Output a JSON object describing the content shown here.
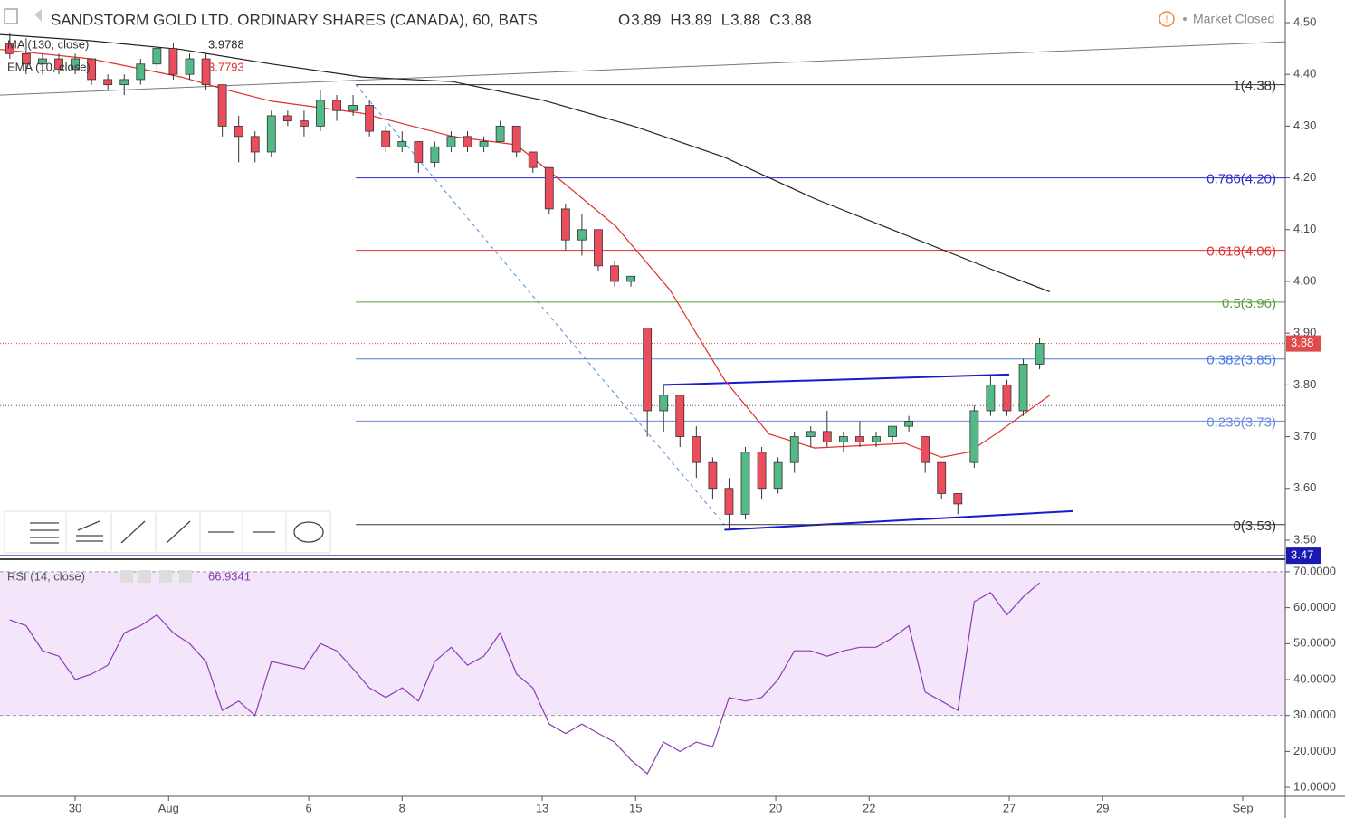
{
  "chart_data": [
    {
      "type": "candlestick",
      "title": "SANDSTORM GOLD LTD. ORDINARY SHARES (CANADA), 60, BATS",
      "status": "Market Closed",
      "ohlc": [
        {
          "label": "O",
          "value": 3.89
        },
        {
          "label": "H",
          "value": 3.89
        },
        {
          "label": "L",
          "value": 3.88
        },
        {
          "label": "C",
          "value": 3.88
        }
      ],
      "x": [
        -1.4,
        -1.05,
        -0.7,
        -0.35,
        0,
        0.35,
        0.7,
        1.05,
        1.4,
        1.75,
        2.1,
        2.45,
        2.8,
        3.15,
        3.5,
        3.85,
        4.2,
        4.55,
        4.9,
        5.25,
        5.6,
        5.95,
        6.3,
        6.65,
        7,
        7.35,
        7.7,
        8.05,
        8.4,
        8.75,
        9.1,
        9.45,
        9.8,
        10.15,
        10.5,
        10.85,
        11.2,
        11.55,
        11.9,
        12.25,
        12.6,
        12.95,
        13.3,
        13.65,
        14,
        14.35,
        14.7,
        15.05,
        15.4,
        15.75,
        16.1,
        16.45,
        16.8,
        17.15,
        17.5,
        17.85,
        18.2,
        18.55,
        18.9,
        19.25,
        19.6,
        19.95,
        20.3,
        20.65
      ],
      "open": [
        4.46,
        4.44,
        4.42,
        4.43,
        4.41,
        4.43,
        4.39,
        4.38,
        4.39,
        4.42,
        4.45,
        4.4,
        4.43,
        4.38,
        4.3,
        4.28,
        4.25,
        4.32,
        4.31,
        4.3,
        4.35,
        4.33,
        4.34,
        4.29,
        4.26,
        4.27,
        4.23,
        4.26,
        4.28,
        4.26,
        4.27,
        4.3,
        4.25,
        4.22,
        4.14,
        4.08,
        4.1,
        4.03,
        4.0,
        3.91,
        3.75,
        3.78,
        3.7,
        3.65,
        3.6,
        3.55,
        3.67,
        3.6,
        3.65,
        3.7,
        3.71,
        3.69,
        3.7,
        3.69,
        3.7,
        3.72,
        3.7,
        3.65,
        3.59,
        3.65,
        3.75,
        3.8,
        3.75,
        3.84
      ],
      "high": [
        4.48,
        4.47,
        4.44,
        4.44,
        4.44,
        4.43,
        4.4,
        4.4,
        4.43,
        4.46,
        4.46,
        4.44,
        4.44,
        4.38,
        4.32,
        4.29,
        4.33,
        4.33,
        4.33,
        4.37,
        4.36,
        4.36,
        4.35,
        4.3,
        4.29,
        4.27,
        4.27,
        4.29,
        4.29,
        4.28,
        4.31,
        4.3,
        4.25,
        4.22,
        4.15,
        4.13,
        4.1,
        4.04,
        4.01,
        3.91,
        3.8,
        3.78,
        3.72,
        3.66,
        3.62,
        3.68,
        3.68,
        3.66,
        3.71,
        3.72,
        3.75,
        3.71,
        3.73,
        3.71,
        3.72,
        3.74,
        3.7,
        3.65,
        3.59,
        3.76,
        3.82,
        3.81,
        3.85,
        3.89
      ],
      "low": [
        4.43,
        4.4,
        4.4,
        4.4,
        4.4,
        4.38,
        4.37,
        4.36,
        4.38,
        4.41,
        4.39,
        4.39,
        4.37,
        4.28,
        4.23,
        4.23,
        4.24,
        4.3,
        4.28,
        4.29,
        4.31,
        4.32,
        4.28,
        4.25,
        4.25,
        4.21,
        4.22,
        4.25,
        4.25,
        4.25,
        4.27,
        4.24,
        4.21,
        4.13,
        4.06,
        4.05,
        4.02,
        3.99,
        3.99,
        3.7,
        3.71,
        3.68,
        3.62,
        3.58,
        3.52,
        3.54,
        3.58,
        3.59,
        3.63,
        3.68,
        3.68,
        3.67,
        3.68,
        3.68,
        3.69,
        3.71,
        3.63,
        3.58,
        3.55,
        3.64,
        3.74,
        3.74,
        3.74,
        3.83
      ],
      "close": [
        4.44,
        4.42,
        4.43,
        4.41,
        4.43,
        4.39,
        4.38,
        4.39,
        4.42,
        4.45,
        4.4,
        4.43,
        4.38,
        4.3,
        4.28,
        4.25,
        4.32,
        4.31,
        4.3,
        4.35,
        4.33,
        4.34,
        4.29,
        4.26,
        4.27,
        4.23,
        4.26,
        4.28,
        4.26,
        4.27,
        4.3,
        4.25,
        4.22,
        4.14,
        4.08,
        4.1,
        4.03,
        4.0,
        4.01,
        3.75,
        3.78,
        3.7,
        3.65,
        3.6,
        3.55,
        3.67,
        3.6,
        3.65,
        3.7,
        3.71,
        3.69,
        3.7,
        3.69,
        3.7,
        3.72,
        3.73,
        3.65,
        3.59,
        3.57,
        3.75,
        3.8,
        3.75,
        3.84,
        3.88
      ],
      "up_color": "#53b987",
      "down_color": "#eb4d5c",
      "xlim": [
        -1.61,
        25.91
      ],
      "ylim": [
        3.4632,
        4.5437
      ],
      "yticks": [
        {
          "value": 3.5,
          "label": "3.50"
        },
        {
          "value": 3.6,
          "label": "3.60"
        },
        {
          "value": 3.7,
          "label": "3.70"
        },
        {
          "value": 3.8,
          "label": "3.80"
        },
        {
          "value": 3.9,
          "label": "3.90"
        },
        {
          "value": 4.0,
          "label": "4.00"
        },
        {
          "value": 4.1,
          "label": "4.10"
        },
        {
          "value": 4.2,
          "label": "4.20"
        },
        {
          "value": 4.3,
          "label": "4.30"
        },
        {
          "value": 4.4,
          "label": "4.40"
        },
        {
          "value": 4.5,
          "label": "4.50"
        }
      ],
      "overlays": [
        {
          "name": "MA (130, close)",
          "color": "#222222",
          "last_value": 3.9788,
          "x": [
            -1.61,
            0.33,
            2.27,
            4.21,
            6.14,
            8.08,
            10.02,
            11.96,
            13.9,
            15.83,
            17.77,
            19.71,
            20.87
          ],
          "values": [
            4.477,
            4.465,
            4.448,
            4.42,
            4.395,
            4.386,
            4.35,
            4.3,
            4.24,
            4.16,
            4.09,
            4.02,
            3.98
          ]
        },
        {
          "name": "EMA (10, close)",
          "color": "#e0302a",
          "last_value": 3.7793,
          "x": [
            -1.61,
            0.33,
            2.27,
            3.24,
            4.21,
            6.14,
            8.08,
            9.44,
            10.41,
            11.57,
            12.73,
            13.9,
            14.86,
            15.83,
            17.77,
            18.55,
            19.13,
            19.71,
            20.87
          ],
          "values": [
            4.448,
            4.43,
            4.395,
            4.37,
            4.348,
            4.325,
            4.28,
            4.264,
            4.194,
            4.107,
            3.984,
            3.81,
            3.705,
            3.678,
            3.687,
            3.66,
            3.67,
            3.705,
            3.78
          ]
        }
      ],
      "fib_start": 6.01,
      "fib_levels": [
        {
          "value": 4.38,
          "label": "1(4.38)",
          "color": "#333333"
        },
        {
          "value": 4.2,
          "label": "0.786(4.20)",
          "color": "#2a2ad0"
        },
        {
          "value": 4.06,
          "label": "0.618(4.06)",
          "color": "#e03030"
        },
        {
          "value": 3.96,
          "label": "0.5(3.96)",
          "color": "#5a9a3a"
        },
        {
          "value": 3.85,
          "label": "0.382(3.85)",
          "color": "#4a7ae0"
        },
        {
          "value": 3.73,
          "label": "0.236(3.73)",
          "color": "#6a8ae0"
        },
        {
          "value": 3.53,
          "label": "0(3.53)",
          "color": "#333333"
        }
      ],
      "hlines": [
        {
          "value": 3.88,
          "color": "#e04a4a",
          "badge": true
        },
        {
          "value": 3.76,
          "color": "#555555",
          "badge": false
        },
        {
          "value": 3.47,
          "color": "#1a1ab0",
          "badge": true
        }
      ],
      "trendlines": [
        {
          "points": [
            [
              -1.61,
              4.36
            ],
            [
              25.91,
              4.463
            ]
          ],
          "color": "#777777",
          "dashed": false
        },
        {
          "points": [
            [
              6.01,
              4.38
            ],
            [
              13.9,
              3.53
            ]
          ],
          "color": "#4a8ae0",
          "dashed": true
        },
        {
          "points": [
            [
              12.6,
              3.8
            ],
            [
              20.0,
              3.82
            ]
          ],
          "color": "#1a1ad0",
          "dashed": false
        },
        {
          "points": [
            [
              13.9,
              3.52
            ],
            [
              21.36,
              3.556
            ]
          ],
          "color": "#1a1ad0",
          "dashed": false
        }
      ]
    },
    {
      "type": "line",
      "title": "RSI (14, close)",
      "last_value": 66.9341,
      "color": "#8e3ab0",
      "band": [
        30,
        70
      ],
      "band_color": "#f3e6fb",
      "x": [
        -1.4,
        -1.05,
        -0.7,
        -0.35,
        0,
        0.35,
        0.7,
        1.05,
        1.4,
        1.75,
        2.1,
        2.45,
        2.8,
        3.15,
        3.5,
        3.85,
        4.2,
        4.55,
        4.9,
        5.25,
        5.6,
        5.95,
        6.3,
        6.65,
        7,
        7.35,
        7.7,
        8.05,
        8.4,
        8.75,
        9.1,
        9.45,
        9.8,
        10.15,
        10.5,
        10.85,
        11.2,
        11.55,
        11.9,
        12.25,
        12.6,
        12.95,
        13.3,
        13.65,
        14,
        14.35,
        14.7,
        15.05,
        15.4,
        15.75,
        16.1,
        16.45,
        16.8,
        17.15,
        17.5,
        17.85,
        18.2,
        18.55,
        18.9,
        19.25,
        19.6,
        19.95,
        20.3,
        20.65
      ],
      "values": [
        56.6,
        55,
        48,
        46.5,
        40,
        41.5,
        44,
        53,
        55,
        58,
        53,
        50,
        45,
        31.4,
        34,
        30,
        45,
        44,
        43,
        50,
        48,
        43,
        37.7,
        35,
        37.7,
        34,
        45,
        49,
        44,
        46.5,
        53,
        41.5,
        37.7,
        27.6,
        25,
        27.6,
        25,
        22.6,
        17.6,
        13.8,
        22.6,
        20,
        22.6,
        21.3,
        35,
        34,
        35,
        40,
        48,
        48,
        46.5,
        48,
        49,
        49,
        51.6,
        55,
        36.5,
        34,
        31.4,
        61.7,
        64.2,
        58,
        63,
        66.9341
      ],
      "xlim": [
        -1.61,
        25.91
      ],
      "ylim": [
        7.5,
        73.0
      ],
      "yticks": [
        {
          "value": 10,
          "label": "10.0000"
        },
        {
          "value": 20,
          "label": "20.0000"
        },
        {
          "value": 30,
          "label": "30.0000"
        },
        {
          "value": 40,
          "label": "40.0000"
        },
        {
          "value": 50,
          "label": "50.0000"
        },
        {
          "value": 60,
          "label": "60.0000"
        },
        {
          "value": 70,
          "label": "70.0000"
        }
      ],
      "xticks": [
        {
          "value": 0,
          "label": "30"
        },
        {
          "value": 2,
          "label": "Aug"
        },
        {
          "value": 5,
          "label": "6"
        },
        {
          "value": 7,
          "label": "8"
        },
        {
          "value": 10,
          "label": "13"
        },
        {
          "value": 12,
          "label": "15"
        },
        {
          "value": 15,
          "label": "20"
        },
        {
          "value": 17,
          "label": "22"
        },
        {
          "value": 20,
          "label": "27"
        },
        {
          "value": 22,
          "label": "29"
        },
        {
          "value": 25,
          "label": "Sep"
        }
      ]
    }
  ]
}
